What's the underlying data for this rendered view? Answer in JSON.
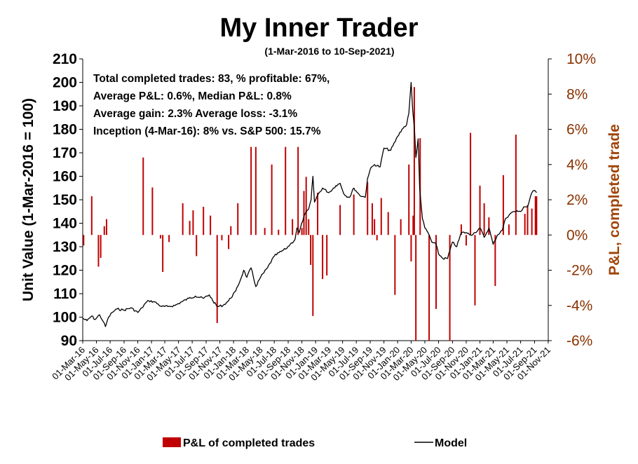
{
  "colors": {
    "bars": "#c00000",
    "line": "#000000",
    "right_axis_text": "#8b3200",
    "right_axis_label": "#a0450a"
  },
  "chart_data": {
    "type": "bar+line",
    "title": "My Inner Trader",
    "subtitle": "(1-Mar-2016 to 10-Sep-2021)",
    "y_left": {
      "label": "Unit Value (1-Mar-2016 = 100)",
      "range": [
        90,
        210
      ],
      "ticks": [
        "210",
        "200",
        "190",
        "180",
        "170",
        "160",
        "150",
        "140",
        "130",
        "120",
        "110",
        "100",
        "90"
      ]
    },
    "y_right": {
      "label": "P&L, completed trade",
      "range": [
        -6,
        10
      ],
      "ticks": [
        "10%",
        "8%",
        "6%",
        "4%",
        "2%",
        "0%",
        "-2%",
        "-4%",
        "-6%"
      ]
    },
    "x_range": [
      "2016-03-01",
      "2021-11-01"
    ],
    "x_ticks": [
      "01-Mar-16",
      "01-May-16",
      "01-Jul-16",
      "01-Sep-16",
      "01-Nov-16",
      "01-Jan-17",
      "01-Mar-17",
      "01-May-17",
      "01-Jul-17",
      "01-Sep-17",
      "01-Nov-17",
      "01-Jan-18",
      "01-Mar-18",
      "01-May-18",
      "01-Jul-18",
      "01-Sep-18",
      "01-Nov-18",
      "01-Jan-19",
      "01-Mar-19",
      "01-May-19",
      "01-Jul-19",
      "01-Sep-19",
      "01-Nov-19",
      "01-Jan-20",
      "01-Mar-20",
      "01-May-20",
      "01-Jul-20",
      "01-Sep-20",
      "01-Nov-20",
      "01-Jan-21",
      "01-Mar-21",
      "01-May-21",
      "01-Jul-21",
      "01-Sep-21",
      "01-Nov-21"
    ],
    "annotations": [
      "Total completed trades: 83, % profitable: 67%,",
      "Average P&L: 0.6%, Median P&L: 0.8%",
      "Average gain: 2.3% Average loss: -3.1%",
      "Inception (4-Mar-16): 8% vs. S&P 500: 15.7%"
    ],
    "legend": [
      "P&L of completed trades",
      "Model"
    ],
    "legend_position": "bottom",
    "series": [
      {
        "name": "Model",
        "type": "line",
        "axis": "left",
        "points": [
          [
            "2016-03-01",
            99.5
          ],
          [
            "2016-03-20",
            98.5
          ],
          [
            "2016-04-10",
            100.5
          ],
          [
            "2016-04-25",
            99
          ],
          [
            "2016-05-15",
            101
          ],
          [
            "2016-06-01",
            98
          ],
          [
            "2016-06-10",
            96
          ],
          [
            "2016-06-24",
            100
          ],
          [
            "2016-07-10",
            102
          ],
          [
            "2016-08-01",
            103.5
          ],
          [
            "2016-09-01",
            103
          ],
          [
            "2016-10-01",
            104
          ],
          [
            "2016-11-01",
            102
          ],
          [
            "2016-11-20",
            104
          ],
          [
            "2016-12-05",
            106
          ],
          [
            "2016-12-20",
            107
          ],
          [
            "2017-01-15",
            106.5
          ],
          [
            "2017-02-15",
            104.5
          ],
          [
            "2017-03-15",
            104.5
          ],
          [
            "2017-04-15",
            105
          ],
          [
            "2017-05-15",
            106.5
          ],
          [
            "2017-06-15",
            108
          ],
          [
            "2017-07-15",
            109
          ],
          [
            "2017-08-20",
            108
          ],
          [
            "2017-09-15",
            109.5
          ],
          [
            "2017-10-01",
            107
          ],
          [
            "2017-10-20",
            104.5
          ],
          [
            "2017-11-15",
            105
          ],
          [
            "2017-12-10",
            107
          ],
          [
            "2018-01-10",
            111
          ],
          [
            "2018-02-01",
            116
          ],
          [
            "2018-02-15",
            120
          ],
          [
            "2018-03-01",
            117
          ],
          [
            "2018-03-20",
            121
          ],
          [
            "2018-04-10",
            113
          ],
          [
            "2018-05-01",
            117
          ],
          [
            "2018-06-01",
            121
          ],
          [
            "2018-07-01",
            126
          ],
          [
            "2018-08-01",
            128
          ],
          [
            "2018-08-20",
            129
          ],
          [
            "2018-09-10",
            131
          ],
          [
            "2018-10-01",
            133
          ],
          [
            "2018-10-10",
            138
          ],
          [
            "2018-10-20",
            136
          ],
          [
            "2018-11-10",
            143
          ],
          [
            "2018-12-01",
            146
          ],
          [
            "2018-12-12",
            150
          ],
          [
            "2018-12-20",
            160
          ],
          [
            "2018-12-27",
            149
          ],
          [
            "2019-01-10",
            152
          ],
          [
            "2019-02-01",
            155
          ],
          [
            "2019-03-01",
            153
          ],
          [
            "2019-04-01",
            156
          ],
          [
            "2019-04-20",
            157
          ],
          [
            "2019-05-10",
            152
          ],
          [
            "2019-06-01",
            151
          ],
          [
            "2019-06-20",
            155
          ],
          [
            "2019-07-15",
            152
          ],
          [
            "2019-08-10",
            151
          ],
          [
            "2019-08-20",
            159
          ],
          [
            "2019-09-01",
            163
          ],
          [
            "2019-09-20",
            165
          ],
          [
            "2019-10-15",
            164
          ],
          [
            "2019-11-01",
            172
          ],
          [
            "2019-12-01",
            171
          ],
          [
            "2020-01-01",
            177
          ],
          [
            "2020-01-20",
            180
          ],
          [
            "2020-02-10",
            182
          ],
          [
            "2020-02-20",
            187
          ],
          [
            "2020-03-01",
            200
          ],
          [
            "2020-03-08",
            188
          ],
          [
            "2020-03-16",
            180
          ],
          [
            "2020-03-22",
            168
          ],
          [
            "2020-04-01",
            176
          ],
          [
            "2020-04-08",
            155
          ],
          [
            "2020-04-20",
            142
          ],
          [
            "2020-05-01",
            138
          ],
          [
            "2020-05-15",
            136
          ],
          [
            "2020-06-01",
            132
          ],
          [
            "2020-06-20",
            131
          ],
          [
            "2020-07-01",
            127
          ],
          [
            "2020-07-20",
            125
          ],
          [
            "2020-08-10",
            125
          ],
          [
            "2020-09-01",
            132
          ],
          [
            "2020-09-20",
            130
          ],
          [
            "2020-10-10",
            136
          ],
          [
            "2020-11-01",
            136
          ],
          [
            "2020-11-20",
            135
          ],
          [
            "2020-12-10",
            136
          ],
          [
            "2021-01-01",
            138
          ],
          [
            "2021-01-20",
            134
          ],
          [
            "2021-02-10",
            138
          ],
          [
            "2021-03-01",
            131
          ],
          [
            "2021-03-20",
            135
          ],
          [
            "2021-04-10",
            137
          ],
          [
            "2021-04-25",
            142
          ],
          [
            "2021-05-15",
            144
          ],
          [
            "2021-06-01",
            145
          ],
          [
            "2021-06-20",
            145
          ],
          [
            "2021-07-01",
            145
          ],
          [
            "2021-07-15",
            147
          ],
          [
            "2021-08-01",
            147
          ],
          [
            "2021-08-20",
            153
          ],
          [
            "2021-09-01",
            154
          ],
          [
            "2021-09-10",
            153
          ]
        ]
      },
      {
        "name": "P&L of completed trades",
        "type": "bar",
        "axis": "right",
        "unit": "%",
        "points": [
          [
            "2016-03-05",
            -0.6
          ],
          [
            "2016-04-10",
            2.2
          ],
          [
            "2016-05-10",
            -1.8
          ],
          [
            "2016-05-20",
            -1.3
          ],
          [
            "2016-06-05",
            0.5
          ],
          [
            "2016-06-15",
            0.9
          ],
          [
            "2016-11-25",
            4.4
          ],
          [
            "2017-01-05",
            2.7
          ],
          [
            "2017-02-10",
            -0.2
          ],
          [
            "2017-02-20",
            -2.1
          ],
          [
            "2017-03-20",
            -0.4
          ],
          [
            "2017-05-20",
            1.8
          ],
          [
            "2017-06-20",
            0.8
          ],
          [
            "2017-07-05",
            1.4
          ],
          [
            "2017-07-20",
            -1.2
          ],
          [
            "2017-08-20",
            1.6
          ],
          [
            "2017-09-20",
            1.1
          ],
          [
            "2017-10-20",
            -5.0
          ],
          [
            "2017-11-10",
            -0.3
          ],
          [
            "2017-12-10",
            -0.8
          ],
          [
            "2017-12-20",
            0.5
          ],
          [
            "2018-01-20",
            1.8
          ],
          [
            "2018-03-20",
            5.0
          ],
          [
            "2018-04-10",
            5.0
          ],
          [
            "2018-05-20",
            0.4
          ],
          [
            "2018-06-20",
            4.0
          ],
          [
            "2018-07-20",
            0.3
          ],
          [
            "2018-08-20",
            5.0
          ],
          [
            "2018-09-20",
            0.9
          ],
          [
            "2018-10-15",
            5.0
          ],
          [
            "2018-11-01",
            0.4
          ],
          [
            "2018-11-10",
            2.5
          ],
          [
            "2018-11-20",
            3.3
          ],
          [
            "2018-12-01",
            0.9
          ],
          [
            "2018-12-10",
            -1.7
          ],
          [
            "2018-12-20",
            -4.6
          ],
          [
            "2019-01-10",
            2.4
          ],
          [
            "2019-02-01",
            -2.5
          ],
          [
            "2019-02-20",
            -2.3
          ],
          [
            "2019-04-20",
            1.7
          ],
          [
            "2019-06-20",
            2.3
          ],
          [
            "2019-08-20",
            3.0
          ],
          [
            "2019-09-10",
            1.8
          ],
          [
            "2019-09-20",
            0.9
          ],
          [
            "2019-10-01",
            -0.3
          ],
          [
            "2019-10-20",
            2.1
          ],
          [
            "2019-11-20",
            1.3
          ],
          [
            "2019-12-20",
            -3.4
          ],
          [
            "2020-01-15",
            0.9
          ],
          [
            "2020-02-20",
            4.0
          ],
          [
            "2020-03-01",
            -1.5
          ],
          [
            "2020-03-10",
            1.1
          ],
          [
            "2020-03-15",
            8.4
          ],
          [
            "2020-03-22",
            -6.0
          ],
          [
            "2020-04-10",
            5.5
          ],
          [
            "2020-05-20",
            -6.0
          ],
          [
            "2020-06-20",
            -4.2
          ],
          [
            "2020-08-20",
            -6.0
          ],
          [
            "2020-10-10",
            0.6
          ],
          [
            "2020-11-01",
            -0.6
          ],
          [
            "2020-11-20",
            5.8
          ],
          [
            "2020-12-10",
            -4.0
          ],
          [
            "2021-01-01",
            2.8
          ],
          [
            "2021-01-20",
            1.8
          ],
          [
            "2021-02-10",
            1.0
          ],
          [
            "2021-03-10",
            -2.9
          ],
          [
            "2021-04-15",
            3.4
          ],
          [
            "2021-05-10",
            0.6
          ],
          [
            "2021-06-10",
            5.7
          ],
          [
            "2021-07-20",
            1.2
          ],
          [
            "2021-08-01",
            1.7
          ],
          [
            "2021-08-20",
            1.5
          ],
          [
            "2021-09-05",
            2.2
          ],
          [
            "2021-09-10",
            2.2
          ]
        ]
      }
    ]
  }
}
